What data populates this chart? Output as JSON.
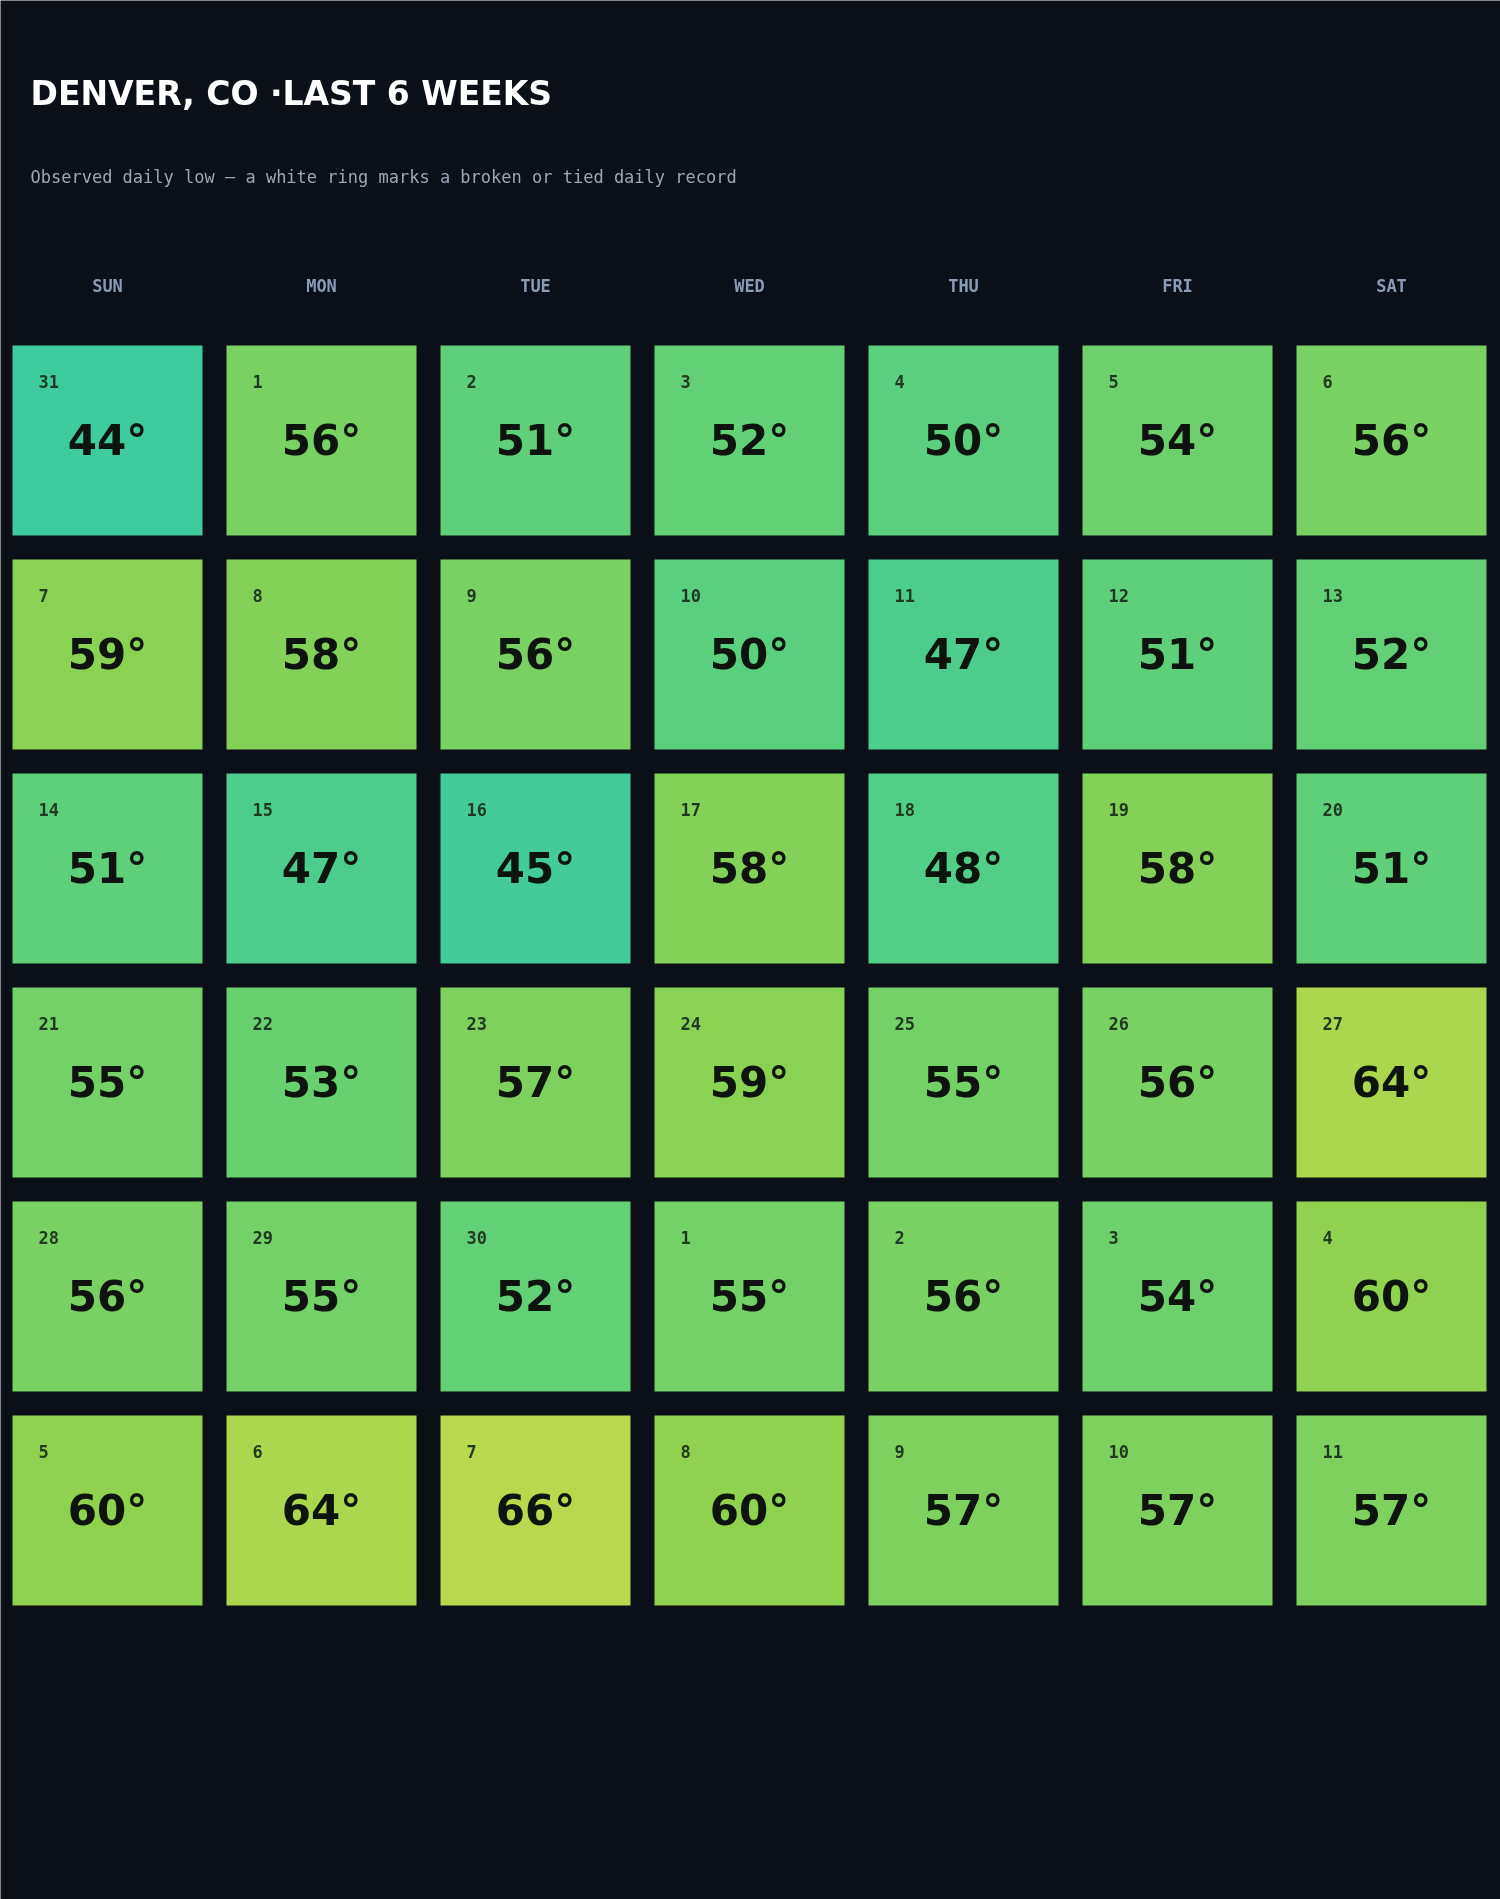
{
  "chart_data": {
    "type": "heatmap",
    "title": "DENVER, CO ·LAST 6 WEEKS",
    "subtitle": "Observed daily low — a white ring marks a broken or tied daily record",
    "categories": [
      "SUN",
      "MON",
      "TUE",
      "WED",
      "THU",
      "FRI",
      "SAT"
    ],
    "y_categories": [
      null,
      null,
      null,
      null,
      null,
      null
    ],
    "cells": [
      [
        44,
        56,
        51,
        52,
        50,
        54,
        56
      ],
      [
        59,
        58,
        56,
        50,
        47,
        51,
        52
      ],
      [
        51,
        47,
        45,
        58,
        48,
        58,
        51
      ],
      [
        55,
        53,
        57,
        59,
        55,
        56,
        64
      ],
      [
        56,
        55,
        52,
        55,
        56,
        54,
        60
      ],
      [
        60,
        64,
        66,
        60,
        57,
        57,
        57
      ]
    ],
    "cell_labels": [
      [
        "44°",
        "56°",
        "51°",
        "52°",
        "50°",
        "54°",
        "56°"
      ],
      [
        "59°",
        "58°",
        "56°",
        "50°",
        "47°",
        "51°",
        "52°"
      ],
      [
        "51°",
        "47°",
        "45°",
        "58°",
        "48°",
        "58°",
        "51°"
      ],
      [
        "55°",
        "53°",
        "57°",
        "59°",
        "55°",
        "56°",
        "64°"
      ],
      [
        "56°",
        "55°",
        "52°",
        "55°",
        "56°",
        "54°",
        "60°"
      ],
      [
        "60°",
        "64°",
        "66°",
        "60°",
        "57°",
        "57°",
        "57°"
      ]
    ],
    "annotations": [
      "31",
      "1",
      "2",
      "3",
      "4",
      "5",
      "6",
      "7",
      "8",
      "9",
      "10",
      "11",
      "12",
      "13",
      "14",
      "15",
      "16",
      "17",
      "18",
      "19",
      "20",
      "21",
      "22",
      "23",
      "24",
      "25",
      "26",
      "27",
      "28",
      "29",
      "30",
      "1",
      "2",
      "3",
      "4",
      "5",
      "6",
      "7",
      "8",
      "9",
      "10",
      "11"
    ]
  }
}
